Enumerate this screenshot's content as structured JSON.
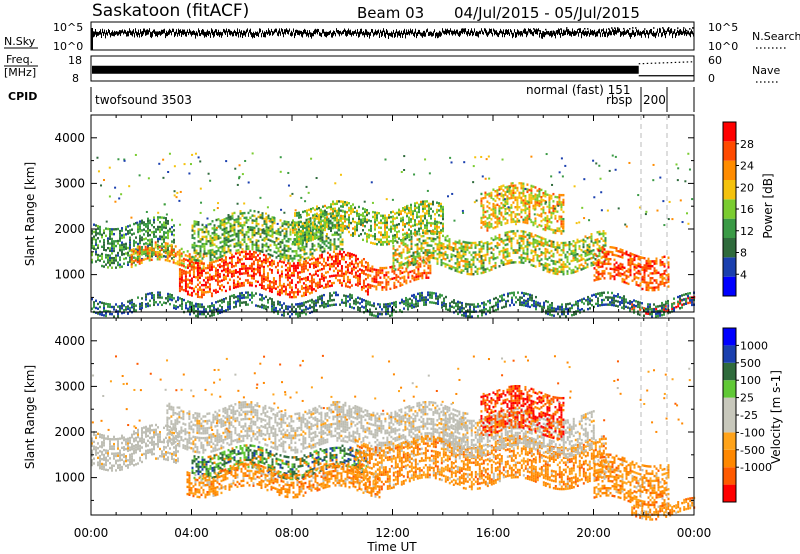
{
  "header": {
    "station": "Saskatoon (fitACF)",
    "beam": "Beam 03",
    "date_range": "04/Jul/2015 - 05/Jul/2015"
  },
  "status_panels": {
    "nsky": {
      "label": "N.Sky",
      "ticks_left": [
        "10^5",
        "10^0"
      ],
      "ticks_right": [
        "10^5",
        "10^0"
      ],
      "right_label": "N.Search",
      "noise_level_fraction_of_panel": 0.62
    },
    "freq": {
      "label_line1": "Freq.",
      "label_line2": "[MHz]",
      "ticks_left": [
        "18",
        "8"
      ],
      "ticks_right": [
        "60",
        "0"
      ],
      "right_label": "Nave",
      "freq_level_fraction_of_panel": 0.45
    },
    "cpid": {
      "label": "CPID",
      "programs": [
        {
          "name": "twofsound 3503",
          "start_hour": 0
        },
        {
          "name": "normal (fast) 151",
          "start_hour": 21.8
        },
        {
          "name": "rbsp",
          "start_hour": 21.8
        },
        {
          "name": "200",
          "start_hour": 22.9
        }
      ]
    }
  },
  "colors": {
    "power_scale": [
      "#0000ff",
      "#1a3fae",
      "#2f6b3c",
      "#3a9a45",
      "#7acc30",
      "#f4c20d",
      "#ff8c00",
      "#ff4a00",
      "#ff0000"
    ],
    "velocity_scale": [
      "#ff0000",
      "#ff5a00",
      "#ff8800",
      "#ffa31a",
      "#c8c8bc",
      "#c8c8bc",
      "#60c836",
      "#2f6b3c",
      "#1a3fae",
      "#0000ff"
    ],
    "ground_scatter_gray": "#bebeb4"
  },
  "chart_data": [
    {
      "type": "heatmap",
      "panel": "power",
      "ylabel": "Slant Range [km]",
      "yticks": [
        "4000",
        "3000",
        "2000",
        "1000"
      ],
      "ylim": [
        180,
        4500
      ],
      "xlim_hours": [
        0,
        24
      ],
      "colorbar": {
        "label": "Power [dB]",
        "ticks": [
          "28",
          "24",
          "20",
          "16",
          "12",
          "8",
          "4"
        ],
        "range": [
          0,
          32
        ]
      },
      "scatter_bands": [
        {
          "t_start": 0.0,
          "t_end": 3.3,
          "r_low": 1300,
          "r_high": 2150,
          "value_min": 6,
          "value_max": 16
        },
        {
          "t_start": 1.5,
          "t_end": 4.5,
          "r_low": 1200,
          "r_high": 1600,
          "value_min": 14,
          "value_max": 28
        },
        {
          "t_start": 3.5,
          "t_end": 11.0,
          "r_low": 620,
          "r_high": 1400,
          "value_min": 22,
          "value_max": 32
        },
        {
          "t_start": 4.0,
          "t_end": 10.0,
          "r_low": 1450,
          "r_high": 2300,
          "value_min": 8,
          "value_max": 20
        },
        {
          "t_start": 8.0,
          "t_end": 14.0,
          "r_low": 1800,
          "r_high": 2500,
          "value_min": 10,
          "value_max": 22
        },
        {
          "t_start": 11.0,
          "t_end": 13.5,
          "r_low": 800,
          "r_high": 1300,
          "value_min": 22,
          "value_max": 30
        },
        {
          "t_start": 12.0,
          "t_end": 20.5,
          "r_low": 1150,
          "r_high": 1850,
          "value_min": 10,
          "value_max": 24
        },
        {
          "t_start": 15.5,
          "t_end": 18.8,
          "r_low": 2050,
          "r_high": 2900,
          "value_min": 14,
          "value_max": 26
        },
        {
          "t_start": 20.0,
          "t_end": 23.0,
          "r_low": 800,
          "r_high": 1500,
          "value_min": 22,
          "value_max": 30
        },
        {
          "t_start": 21.5,
          "t_end": 24.0,
          "r_low": 250,
          "r_high": 400,
          "value_min": 26,
          "value_max": 32
        },
        {
          "t_start": 0.0,
          "t_end": 24.0,
          "r_low": 200,
          "r_high": 500,
          "value_min": 4,
          "value_max": 14
        }
      ]
    },
    {
      "type": "heatmap",
      "panel": "velocity",
      "ylabel": "Slant Range [km]",
      "yticks": [
        "4000",
        "3000",
        "2000",
        "1000"
      ],
      "ylim": [
        180,
        4500
      ],
      "xlabel": "Time UT",
      "xticks": [
        "00:00",
        "04:00",
        "08:00",
        "12:00",
        "16:00",
        "20:00",
        "00:00"
      ],
      "xlim_hours": [
        0,
        24
      ],
      "colorbar": {
        "label": "Velocity [m s-1]",
        "ticks": [
          "1000",
          "500",
          "100",
          "25",
          "-25",
          "-100",
          "-500",
          "-1000"
        ]
      },
      "scatter_bands": [
        {
          "t_start": 0.0,
          "t_end": 3.5,
          "r_low": 1300,
          "r_high": 2050,
          "kind": "ground"
        },
        {
          "t_start": 3.0,
          "t_end": 15.0,
          "r_low": 1700,
          "r_high": 2550,
          "kind": "ground"
        },
        {
          "t_start": 4.0,
          "t_end": 11.0,
          "r_low": 1100,
          "r_high": 1600,
          "kind": "positive"
        },
        {
          "t_start": 3.8,
          "t_end": 11.5,
          "r_low": 700,
          "r_high": 1200,
          "kind": "negative"
        },
        {
          "t_start": 10.5,
          "t_end": 20.5,
          "r_low": 900,
          "r_high": 1800,
          "kind": "negative"
        },
        {
          "t_start": 14.0,
          "t_end": 20.0,
          "r_low": 1600,
          "r_high": 2400,
          "kind": "ground"
        },
        {
          "t_start": 15.5,
          "t_end": 18.8,
          "r_low": 2000,
          "r_high": 2900,
          "kind": "negative_strong"
        },
        {
          "t_start": 20.0,
          "t_end": 23.0,
          "r_low": 500,
          "r_high": 1400,
          "kind": "negative"
        },
        {
          "t_start": 21.5,
          "t_end": 24.0,
          "r_low": 220,
          "r_high": 450,
          "kind": "negative"
        }
      ]
    }
  ]
}
